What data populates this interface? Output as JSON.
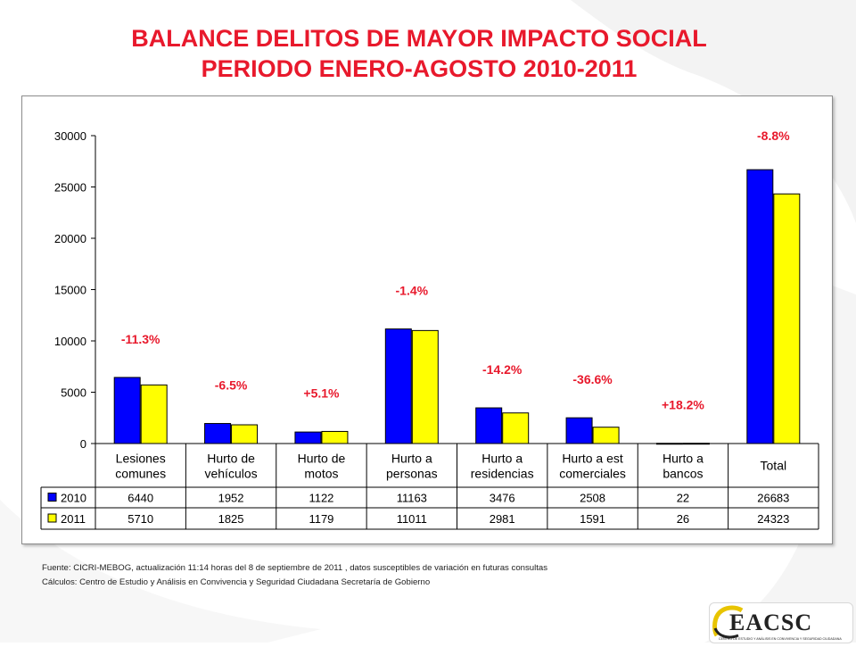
{
  "title": {
    "line1": "BALANCE DELITOS DE MAYOR IMPACTO SOCIAL",
    "line2": "PERIODO ENERO-AGOSTO 2010-2011"
  },
  "colors": {
    "series_2010": "#0000ff",
    "series_2011": "#ffff00",
    "title": "#e8192c",
    "change_labels": "#e8192c"
  },
  "chart_data": {
    "type": "bar",
    "categories": [
      [
        "Lesiones",
        "comunes"
      ],
      [
        "Hurto de",
        "vehículos"
      ],
      [
        "Hurto de",
        "motos"
      ],
      [
        "Hurto a",
        "personas"
      ],
      [
        "Hurto a",
        "residencias"
      ],
      [
        "Hurto a est",
        "comerciales"
      ],
      [
        "Hurto a",
        "bancos"
      ],
      [
        "Total"
      ]
    ],
    "series": [
      {
        "name": "2010",
        "color": "#0000ff",
        "values": [
          6440,
          1952,
          1122,
          11163,
          3476,
          2508,
          22,
          26683
        ]
      },
      {
        "name": "2011",
        "color": "#ffff00",
        "values": [
          5710,
          1825,
          1179,
          11011,
          2981,
          1591,
          26,
          24323
        ]
      }
    ],
    "change_labels": [
      "-11.3%",
      "-6.5%",
      "+5.1%",
      "-1.4%",
      "-14.2%",
      "-36.6%",
      "+18.2%",
      "-8.8%"
    ],
    "yticks": [
      "0",
      "5000",
      "10000",
      "15000",
      "20000",
      "25000",
      "30000"
    ],
    "ylim": [
      0,
      30000
    ],
    "grid": false,
    "legend": "data-table",
    "xlabel": "",
    "ylabel": ""
  },
  "footer": {
    "source": "Fuente: CICRI-MEBOG,  actualización  11:14 horas del  8 de  septiembre de 2011 , datos susceptibles de variación en futuras consultas",
    "calc": "Cálculos: Centro de Estudio  y Análisis en Convivencia y Seguridad Ciudadana Secretaría de Gobierno"
  },
  "logo": {
    "brand": "CEACSC",
    "tagline": "CENTRO DE ESTUDIO Y ANÁLISIS EN CONVIVENCIA Y SEGURIDAD CIUDADANA"
  }
}
